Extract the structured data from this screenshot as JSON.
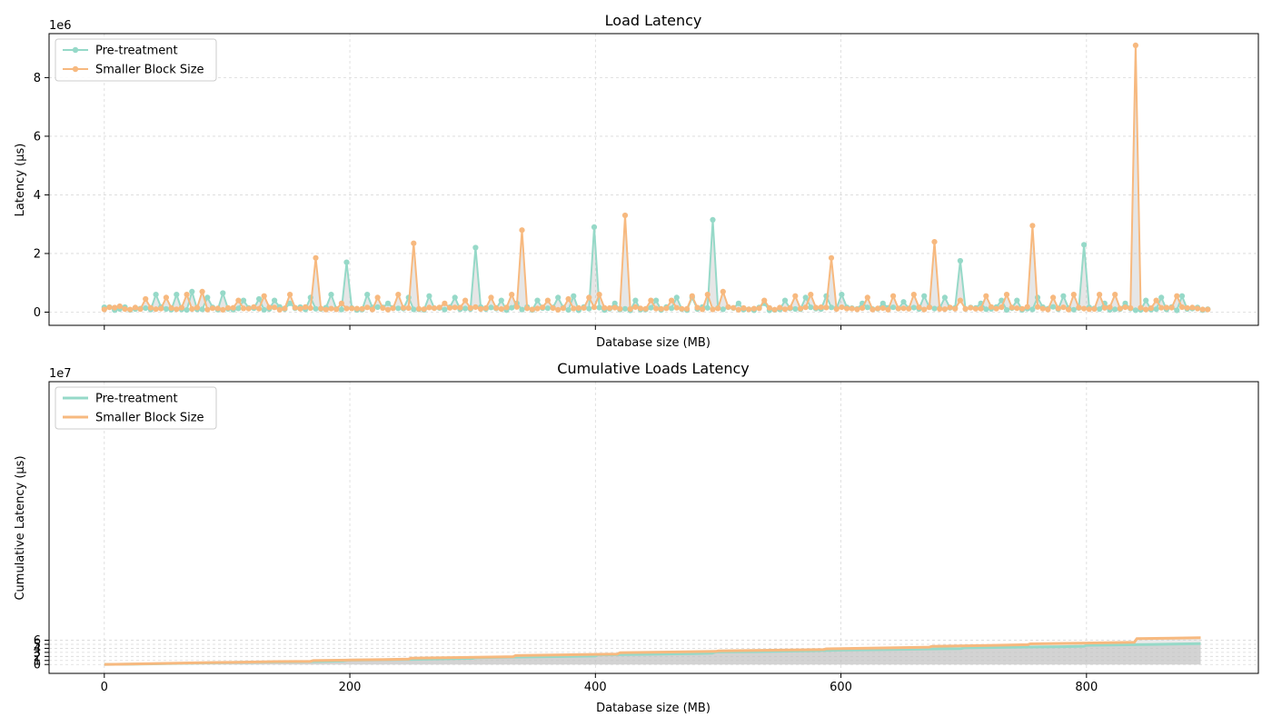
{
  "chart_data": [
    {
      "type": "line",
      "title": "Load Latency",
      "xlabel": "Database size (MB)",
      "ylabel": "Latency (μs)",
      "y_offset_label": "1e6",
      "xlim": [
        -45,
        940
      ],
      "ylim": [
        -0.45,
        9.5
      ],
      "y_scale_factor": 1000000,
      "grid": true,
      "legend_position": "top-left",
      "x_ticks": [
        0,
        200,
        400,
        600,
        800
      ],
      "x_tick_labels_shown": false,
      "y_ticks": [
        0,
        2,
        4,
        6,
        8
      ],
      "y_tick_labels": [
        "0",
        "2",
        "4",
        "6",
        "8"
      ],
      "fill_between_series": true,
      "series": [
        {
          "name": "Pre-treatment",
          "color": "#96d9c8",
          "baseline": 0.12,
          "x_start": 0,
          "x_step": 4.2,
          "count": 215,
          "noise": 0.12,
          "spikes": [
            [
              10,
              0.6
            ],
            [
              14,
              0.6
            ],
            [
              17,
              0.7
            ],
            [
              20,
              0.5
            ],
            [
              23,
              0.65
            ],
            [
              27,
              0.4
            ],
            [
              30,
              0.45
            ],
            [
              33,
              0.4
            ],
            [
              36,
              0.3
            ],
            [
              40,
              0.5
            ],
            [
              44,
              0.6
            ],
            [
              47,
              1.7
            ],
            [
              51,
              0.6
            ],
            [
              55,
              0.3
            ],
            [
              59,
              0.5
            ],
            [
              63,
              0.55
            ],
            [
              68,
              0.5
            ],
            [
              72,
              2.2
            ],
            [
              77,
              0.4
            ],
            [
              80,
              0.3
            ],
            [
              84,
              0.4
            ],
            [
              88,
              0.5
            ],
            [
              91,
              0.55
            ],
            [
              95,
              2.9
            ],
            [
              99,
              0.3
            ],
            [
              103,
              0.4
            ],
            [
              107,
              0.4
            ],
            [
              111,
              0.5
            ],
            [
              114,
              0.5
            ],
            [
              118,
              3.15
            ],
            [
              123,
              0.3
            ],
            [
              128,
              0.3
            ],
            [
              132,
              0.4
            ],
            [
              136,
              0.5
            ],
            [
              140,
              0.55
            ],
            [
              143,
              0.6
            ],
            [
              147,
              0.3
            ],
            [
              151,
              0.3
            ],
            [
              155,
              0.35
            ],
            [
              159,
              0.55
            ],
            [
              163,
              0.5
            ],
            [
              166,
              1.75
            ],
            [
              170,
              0.3
            ],
            [
              174,
              0.4
            ],
            [
              177,
              0.4
            ],
            [
              181,
              0.5
            ],
            [
              186,
              0.55
            ],
            [
              190,
              2.3
            ],
            [
              194,
              0.3
            ],
            [
              198,
              0.3
            ],
            [
              202,
              0.4
            ],
            [
              205,
              0.5
            ],
            [
              209,
              0.55
            ]
          ]
        },
        {
          "name": "Smaller Block Size",
          "color": "#f7b97f",
          "baseline": 0.13,
          "x_start": 0,
          "x_step": 4.2,
          "count": 215,
          "noise": 0.1,
          "spikes": [
            [
              3,
              0.2
            ],
            [
              8,
              0.45
            ],
            [
              12,
              0.5
            ],
            [
              16,
              0.6
            ],
            [
              19,
              0.7
            ],
            [
              26,
              0.4
            ],
            [
              31,
              0.55
            ],
            [
              36,
              0.6
            ],
            [
              41,
              1.85
            ],
            [
              46,
              0.3
            ],
            [
              53,
              0.5
            ],
            [
              57,
              0.6
            ],
            [
              60,
              2.35
            ],
            [
              66,
              0.3
            ],
            [
              70,
              0.4
            ],
            [
              75,
              0.5
            ],
            [
              79,
              0.6
            ],
            [
              81,
              2.8
            ],
            [
              86,
              0.4
            ],
            [
              90,
              0.45
            ],
            [
              94,
              0.5
            ],
            [
              96,
              0.6
            ],
            [
              101,
              3.3
            ],
            [
              106,
              0.4
            ],
            [
              110,
              0.4
            ],
            [
              114,
              0.55
            ],
            [
              117,
              0.6
            ],
            [
              120,
              0.7
            ],
            [
              128,
              0.4
            ],
            [
              134,
              0.55
            ],
            [
              137,
              0.6
            ],
            [
              141,
              1.85
            ],
            [
              148,
              0.5
            ],
            [
              153,
              0.55
            ],
            [
              157,
              0.6
            ],
            [
              161,
              2.4
            ],
            [
              166,
              0.4
            ],
            [
              171,
              0.55
            ],
            [
              175,
              0.6
            ],
            [
              180,
              2.95
            ],
            [
              184,
              0.5
            ],
            [
              188,
              0.6
            ],
            [
              193,
              0.6
            ],
            [
              196,
              0.6
            ],
            [
              200,
              9.1
            ],
            [
              204,
              0.4
            ],
            [
              208,
              0.55
            ]
          ]
        }
      ]
    },
    {
      "type": "area",
      "title": "Cumulative Loads Latency",
      "xlabel": "Database size (MB)",
      "ylabel": "Cumulative Latency (μs)",
      "y_offset_label": "1e7",
      "xlim": [
        -45,
        940
      ],
      "ylim": [
        -2.2,
        70
      ],
      "y_scale_factor": 10000000,
      "grid": true,
      "legend_position": "top-left",
      "x_ticks": [
        0,
        200,
        400,
        600,
        800
      ],
      "x_tick_labels": [
        "0",
        "200",
        "400",
        "600",
        "800"
      ],
      "y_ticks": [
        0,
        1,
        2,
        3,
        4,
        5,
        6
      ],
      "y_tick_labels": [
        "0",
        "1",
        "2",
        "3",
        "4",
        "5",
        "6"
      ],
      "series": [
        {
          "name": "Pre-treatment",
          "color": "#96d9c8",
          "x": [
            0,
            20,
            40,
            60,
            80,
            100,
            120,
            140,
            160,
            180,
            195,
            198,
            220,
            250,
            280,
            300,
            302,
            330,
            360,
            380,
            400,
            402,
            440,
            480,
            495,
            498,
            530,
            570,
            600,
            640,
            680,
            698,
            700,
            740,
            780,
            798,
            800,
            840,
            870,
            893
          ],
          "y": [
            0.02,
            0.08,
            0.17,
            0.27,
            0.38,
            0.48,
            0.57,
            0.64,
            0.71,
            0.8,
            0.9,
            1.07,
            1.15,
            1.27,
            1.42,
            1.5,
            1.7,
            1.82,
            1.93,
            2.03,
            2.1,
            2.38,
            2.52,
            2.69,
            2.8,
            3.1,
            3.18,
            3.36,
            3.55,
            3.72,
            3.88,
            3.95,
            4.13,
            4.25,
            4.42,
            4.52,
            4.75,
            4.9,
            5.05,
            5.15
          ]
        },
        {
          "name": "Smaller Block Size",
          "color": "#f7b97f",
          "x": [
            0,
            20,
            40,
            60,
            80,
            100,
            120,
            140,
            168,
            170,
            200,
            230,
            248,
            250,
            290,
            333,
            335,
            380,
            418,
            420,
            460,
            498,
            500,
            550,
            586,
            588,
            640,
            672,
            674,
            720,
            752,
            754,
            800,
            839,
            841,
            870,
            893
          ],
          "y": [
            0.02,
            0.1,
            0.2,
            0.32,
            0.44,
            0.53,
            0.62,
            0.72,
            0.8,
            0.98,
            1.1,
            1.25,
            1.36,
            1.58,
            1.73,
            1.94,
            2.2,
            2.4,
            2.6,
            2.9,
            3.08,
            3.25,
            3.35,
            3.55,
            3.72,
            3.88,
            4.12,
            4.3,
            4.47,
            4.7,
            4.9,
            5.12,
            5.32,
            5.5,
            6.4,
            6.52,
            6.63
          ]
        }
      ]
    }
  ]
}
